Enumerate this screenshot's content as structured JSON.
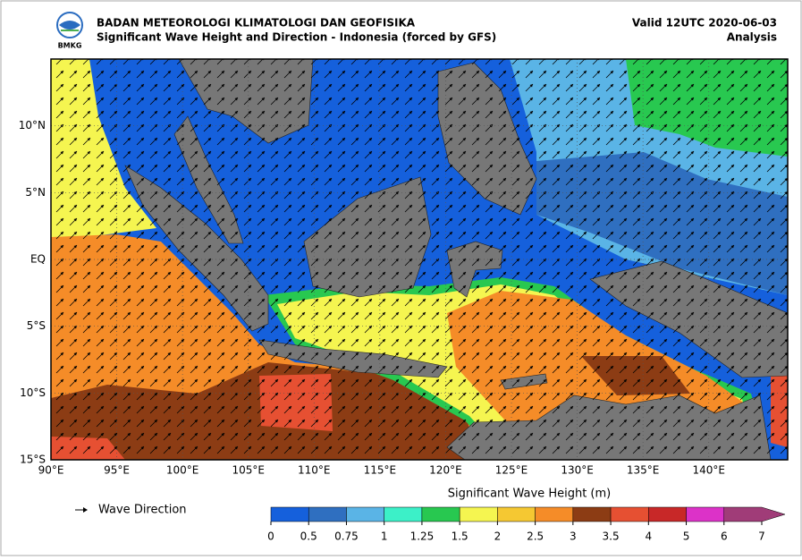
{
  "header": {
    "logo_text": "BMKG",
    "organization": "BADAN METEOROLOGI KLIMATOLOGI DAN GEOFISIKA",
    "subtitle": "Significant Wave Height and Direction - Indonesia (forced by GFS)",
    "valid": "Valid 12UTC 2020-06-03",
    "status": "Analysis"
  },
  "map": {
    "lon_range": [
      90,
      146
    ],
    "lat_range": [
      -15,
      15
    ],
    "lon_ticks": [
      {
        "value": 90,
        "label": "90°E"
      },
      {
        "value": 95,
        "label": "95°E"
      },
      {
        "value": 100,
        "label": "100°E"
      },
      {
        "value": 105,
        "label": "105°E"
      },
      {
        "value": 110,
        "label": "110°E"
      },
      {
        "value": 115,
        "label": "115°E"
      },
      {
        "value": 120,
        "label": "120°E"
      },
      {
        "value": 125,
        "label": "125°E"
      },
      {
        "value": 130,
        "label": "130°E"
      },
      {
        "value": 135,
        "label": "135°E"
      },
      {
        "value": 140,
        "label": "140°E"
      }
    ],
    "lat_ticks": [
      {
        "value": 10,
        "label": "10°N"
      },
      {
        "value": 5,
        "label": "5°N"
      },
      {
        "value": 0,
        "label": "EQ"
      },
      {
        "value": -5,
        "label": "5°S"
      },
      {
        "value": -10,
        "label": "10°S"
      },
      {
        "value": -15,
        "label": "15°S"
      }
    ]
  },
  "legend": {
    "direction_label": "Wave Direction"
  },
  "colorbar": {
    "title": "Significant Wave Height (m)",
    "ticks": [
      0,
      0.5,
      0.75,
      1,
      1.25,
      1.5,
      2,
      2.5,
      3,
      3.5,
      4,
      5,
      6,
      7
    ],
    "colors": [
      "#1560dc",
      "#2f6fc0",
      "#5ab4e6",
      "#3cf0c8",
      "#28c850",
      "#f5f550",
      "#f5c832",
      "#f58c28",
      "#8c3c14",
      "#e65032",
      "#c82828",
      "#dc32c8",
      "#a03c78"
    ]
  }
}
